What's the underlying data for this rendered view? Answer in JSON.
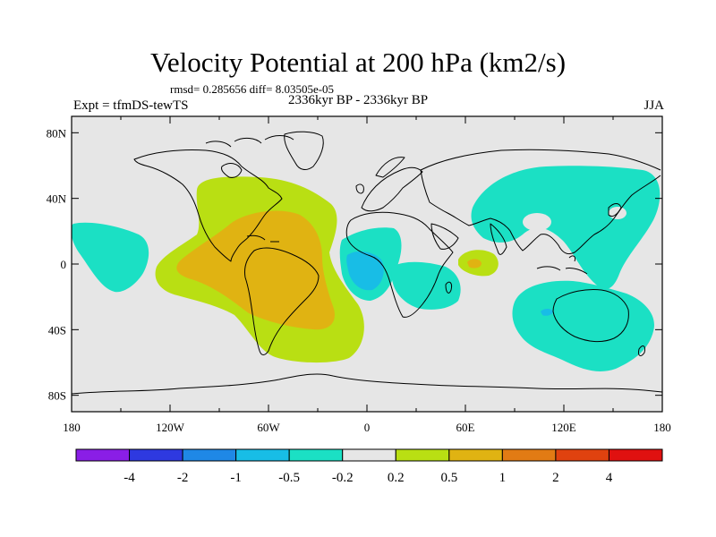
{
  "header": {
    "title": "Velocity Potential at 200 hPa (km2/s)",
    "stats": "rmsd= 0.285656 diff= 8.03505e-05",
    "experiment": "Expt = tfmDS-tewTS",
    "period": "2336kyr BP - 2336kyr BP",
    "season": "JJA"
  },
  "map": {
    "lon_ticks": [
      "180",
      "120W",
      "60W",
      "0",
      "60E",
      "120E",
      "180"
    ],
    "lat_ticks": [
      "80N",
      "40N",
      "0",
      "40S",
      "80S"
    ]
  },
  "colorbar": {
    "colors": [
      "#8a1ee6",
      "#2e39e0",
      "#1f88e6",
      "#18bde6",
      "#1be0c4",
      "#e6e6e6",
      "#b9df13",
      "#e0b312",
      "#e27b14",
      "#e0420f",
      "#e01110"
    ],
    "labels": [
      "-4",
      "-2",
      "-1",
      "-0.5",
      "-0.2",
      "0.2",
      "0.5",
      "1",
      "2",
      "4"
    ]
  },
  "palette": {
    "background": "#e6e6e6",
    "positive_weak": "#b9df13",
    "positive_mid": "#e0b312",
    "negative_weak": "#1be0c4",
    "negative_mid": "#18bde6",
    "positive_strong": "#e27b14",
    "negative_strong": "#1f88e6"
  }
}
